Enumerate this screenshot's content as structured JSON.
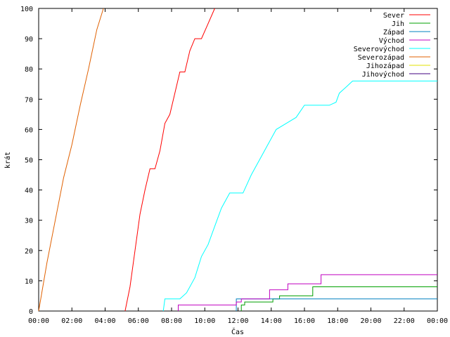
{
  "chart_data": {
    "type": "line",
    "title": "",
    "xlabel": "Čas",
    "ylabel": "krát",
    "xlim": [
      0,
      24
    ],
    "ylim": [
      0,
      100
    ],
    "x_unit": "hours",
    "x_ticks": [
      {
        "value": 0,
        "label": "00:00"
      },
      {
        "value": 2,
        "label": "02:00"
      },
      {
        "value": 4,
        "label": "04:00"
      },
      {
        "value": 6,
        "label": "06:00"
      },
      {
        "value": 8,
        "label": "08:00"
      },
      {
        "value": 10,
        "label": "10:00"
      },
      {
        "value": 12,
        "label": "12:00"
      },
      {
        "value": 14,
        "label": "14:00"
      },
      {
        "value": 16,
        "label": "16:00"
      },
      {
        "value": 18,
        "label": "18:00"
      },
      {
        "value": 20,
        "label": "20:00"
      },
      {
        "value": 22,
        "label": "22:00"
      },
      {
        "value": 24,
        "label": "00:00"
      }
    ],
    "y_ticks": [
      0,
      10,
      20,
      30,
      40,
      50,
      60,
      70,
      80,
      90,
      100
    ],
    "grid": false,
    "legend_position": "top-right",
    "series": [
      {
        "name": "Sever",
        "color": "#ff0000",
        "points": [
          [
            5.2,
            0
          ],
          [
            5.5,
            8
          ],
          [
            5.8,
            20
          ],
          [
            6.1,
            32
          ],
          [
            6.4,
            40
          ],
          [
            6.7,
            47
          ],
          [
            7.0,
            47
          ],
          [
            7.3,
            53
          ],
          [
            7.6,
            62
          ],
          [
            7.9,
            65
          ],
          [
            8.2,
            72
          ],
          [
            8.5,
            79
          ],
          [
            8.8,
            79
          ],
          [
            9.1,
            86
          ],
          [
            9.4,
            90
          ],
          [
            9.8,
            90
          ],
          [
            10.2,
            95
          ],
          [
            10.6,
            100
          ]
        ]
      },
      {
        "name": "Jih",
        "color": "#00a000",
        "points": [
          [
            12.2,
            0
          ],
          [
            12.2,
            2
          ],
          [
            12.4,
            2
          ],
          [
            12.4,
            3
          ],
          [
            14.1,
            3
          ],
          [
            14.1,
            4
          ],
          [
            14.5,
            4
          ],
          [
            14.5,
            5
          ],
          [
            16.5,
            5
          ],
          [
            16.5,
            8
          ],
          [
            24,
            8
          ]
        ]
      },
      {
        "name": "Západ",
        "color": "#0080c0",
        "points": [
          [
            11.9,
            0
          ],
          [
            11.9,
            4
          ],
          [
            24,
            4
          ]
        ]
      },
      {
        "name": "Východ",
        "color": "#c000c0",
        "points": [
          [
            8.4,
            0
          ],
          [
            8.4,
            2
          ],
          [
            11.9,
            2
          ],
          [
            11.9,
            3
          ],
          [
            12.2,
            3
          ],
          [
            12.2,
            4
          ],
          [
            13.9,
            4
          ],
          [
            13.9,
            7
          ],
          [
            15.0,
            7
          ],
          [
            15.0,
            9
          ],
          [
            17.0,
            9
          ],
          [
            17.0,
            12
          ],
          [
            24,
            12
          ]
        ]
      },
      {
        "name": "Severovýchod",
        "color": "#00ffff",
        "points": [
          [
            7.5,
            0
          ],
          [
            7.6,
            4
          ],
          [
            8.5,
            4
          ],
          [
            8.9,
            6
          ],
          [
            9.4,
            11
          ],
          [
            9.8,
            18
          ],
          [
            10.2,
            22
          ],
          [
            10.6,
            28
          ],
          [
            11.0,
            34
          ],
          [
            11.5,
            39
          ],
          [
            12.3,
            39
          ],
          [
            12.8,
            45
          ],
          [
            13.3,
            50
          ],
          [
            13.8,
            55
          ],
          [
            14.3,
            60
          ],
          [
            14.9,
            62
          ],
          [
            15.5,
            64
          ],
          [
            16.0,
            68
          ],
          [
            17.5,
            68
          ],
          [
            17.9,
            69
          ],
          [
            18.1,
            72
          ],
          [
            18.5,
            74
          ],
          [
            18.9,
            76
          ],
          [
            24,
            76
          ]
        ]
      },
      {
        "name": "Severozápad",
        "color": "#e06000",
        "points": [
          [
            0,
            0
          ],
          [
            0.5,
            16
          ],
          [
            1.0,
            30
          ],
          [
            1.5,
            44
          ],
          [
            2.0,
            55
          ],
          [
            2.5,
            68
          ],
          [
            3.0,
            80
          ],
          [
            3.5,
            93
          ],
          [
            3.9,
            100
          ]
        ]
      },
      {
        "name": "Jihozápad",
        "color": "#e0e000",
        "points": []
      },
      {
        "name": "Jihovýchod",
        "color": "#400080",
        "points": []
      }
    ]
  }
}
